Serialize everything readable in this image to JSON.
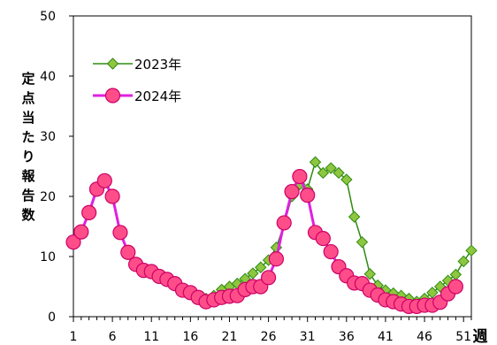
{
  "chart_data": {
    "type": "line",
    "ylabel": "定点当たり報告数",
    "xunit": "週",
    "ylim": [
      0,
      50
    ],
    "xlim": [
      1,
      52
    ],
    "yticks": [
      0,
      10,
      20,
      30,
      40,
      50
    ],
    "xticks": [
      1,
      6,
      11,
      16,
      21,
      26,
      31,
      36,
      41,
      46,
      51
    ],
    "grid": false,
    "legend_position": "upper-left",
    "series": [
      {
        "name": "2023年",
        "color": "#2e8b12",
        "marker_fill": "#8ec63f",
        "marker": "diamond",
        "x": [
          18,
          19,
          20,
          21,
          22,
          23,
          24,
          25,
          26,
          27,
          28,
          29,
          30,
          31,
          32,
          33,
          34,
          35,
          36,
          37,
          38,
          39,
          40,
          41,
          42,
          43,
          44,
          45,
          46,
          47,
          48,
          49,
          50,
          51,
          52
        ],
        "values": [
          3.0,
          3.5,
          4.5,
          5.0,
          5.5,
          6.3,
          7.2,
          8.2,
          9.4,
          11.5,
          15.3,
          20.0,
          22.0,
          21.2,
          25.7,
          23.9,
          24.7,
          23.9,
          22.8,
          16.6,
          12.4,
          7.1,
          5.2,
          4.4,
          3.9,
          3.5,
          3.0,
          2.5,
          3.0,
          4.0,
          5.0,
          6.0,
          7.0,
          9.2,
          11.0
        ]
      },
      {
        "name": "2024年",
        "color": "#e020e0",
        "marker_fill": "#ff4d8a",
        "marker": "circle",
        "x": [
          1,
          2,
          3,
          4,
          5,
          6,
          7,
          8,
          9,
          10,
          11,
          12,
          13,
          14,
          15,
          16,
          17,
          18,
          19,
          20,
          21,
          22,
          23,
          24,
          25,
          26,
          27,
          28,
          29,
          30,
          31,
          32,
          33,
          34,
          35,
          36,
          37,
          38,
          39,
          40,
          41,
          42,
          43,
          44,
          45,
          46,
          47,
          48,
          49,
          50
        ],
        "values": [
          12.4,
          14.1,
          17.3,
          21.2,
          22.6,
          20.0,
          14.0,
          10.7,
          8.7,
          7.7,
          7.5,
          6.7,
          6.2,
          5.5,
          4.4,
          4.0,
          3.2,
          2.5,
          2.8,
          3.2,
          3.4,
          3.5,
          4.5,
          5.0,
          5.0,
          6.5,
          9.6,
          15.6,
          20.8,
          23.3,
          20.2,
          14.0,
          13.0,
          10.8,
          8.3,
          6.8,
          5.6,
          5.5,
          4.4,
          3.6,
          2.8,
          2.5,
          2.1,
          1.7,
          1.7,
          1.9,
          1.9,
          2.4,
          3.8,
          5.0
        ]
      }
    ]
  }
}
